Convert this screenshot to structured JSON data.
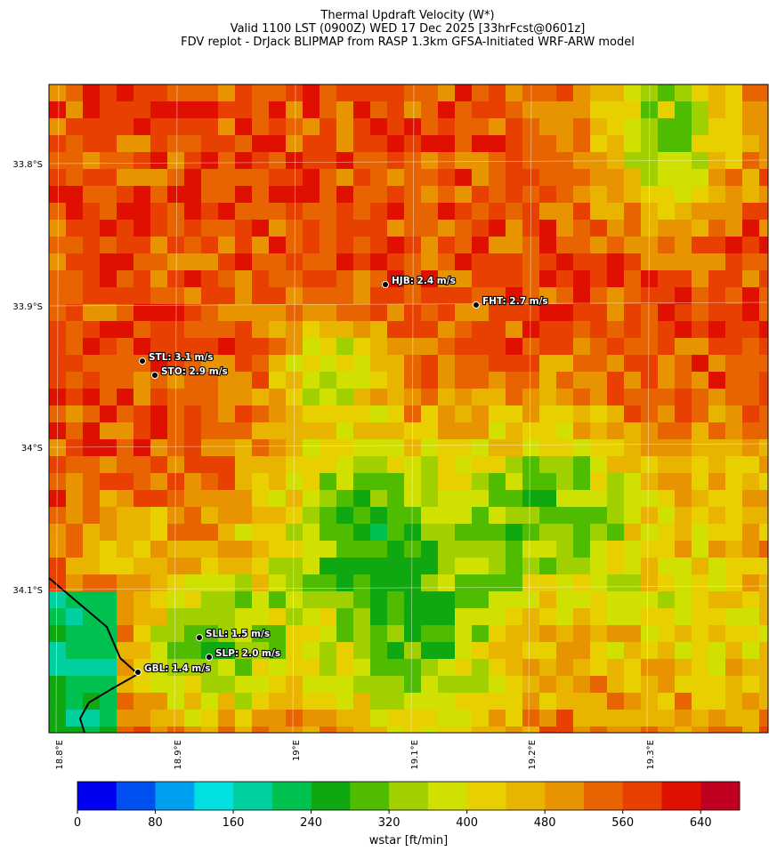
{
  "title_lines": [
    "Thermal Updraft Velocity (W*)",
    "Valid 1100 LST (0900Z) WED 17 Dec 2025 [33hrFcst@0601z]",
    "FDV replot - DrJack BLIPMAP from RASP 1.3km GFSA-Initiated WRF-ARW model"
  ],
  "map": {
    "lat_labels": [
      "33.8°S",
      "33.9°S",
      "34°S",
      "34.1°S"
    ],
    "lon_labels": [
      "18.8°E",
      "18.9°E",
      "19°E",
      "19.1°E",
      "19.2°E",
      "19.3°E"
    ],
    "stations": [
      "HJB: 2.4 m/s",
      "FHT: 2.7 m/s",
      "STL: 3.1 m/s",
      "STO: 2.9 m/s",
      "SLL: 1.5 m/s",
      "SLP: 2.0 m/s",
      "GBL: 1.4 m/s"
    ]
  },
  "colorbar": {
    "label": "wstar [ft/min]",
    "lim": [
      0,
      680
    ],
    "ticks": [
      0,
      80,
      160,
      240,
      320,
      400,
      480,
      560,
      640
    ],
    "colors": [
      "#0000f0",
      "#0050f0",
      "#00a0f0",
      "#00e0e0",
      "#00d0a0",
      "#00c050",
      "#10a810",
      "#50bc00",
      "#a0d000",
      "#d0e000",
      "#e8d000",
      "#e8b400",
      "#e89400",
      "#e86400",
      "#e84000",
      "#e01000",
      "#c00020"
    ]
  }
}
